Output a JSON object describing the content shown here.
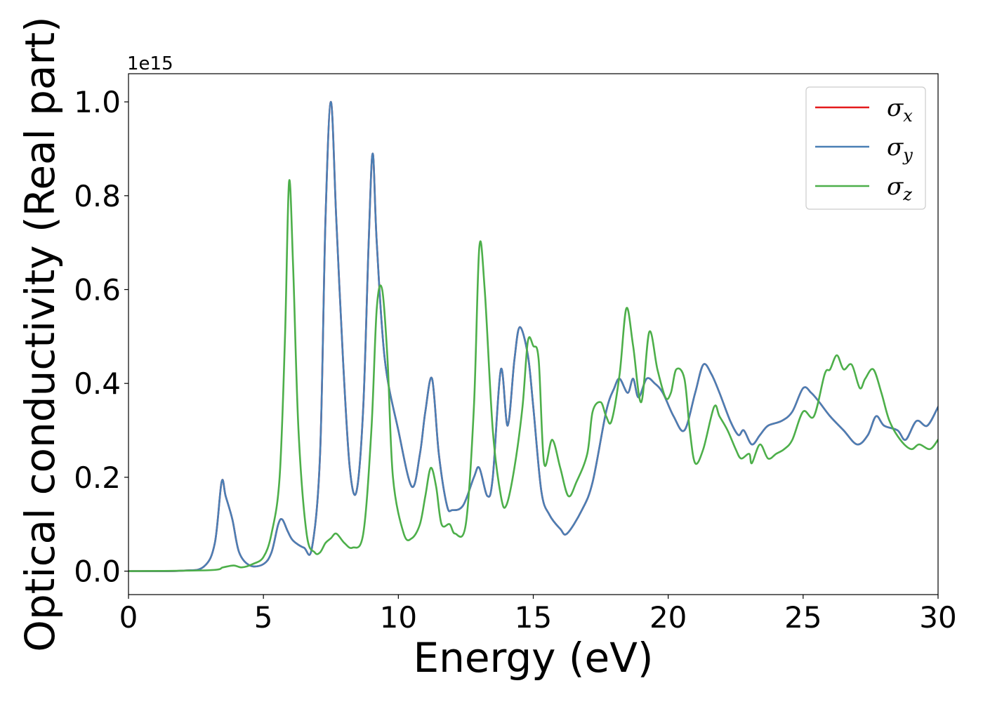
{
  "chart_data": {
    "type": "line",
    "xlabel": "Energy (eV)",
    "ylabel": "Optical conductivity (Real part)",
    "y_offset_label": "1e15",
    "xlim": [
      0,
      30
    ],
    "ylim": [
      -0.05,
      1.06
    ],
    "xticks": [
      0,
      5,
      10,
      15,
      20,
      25,
      30
    ],
    "xtick_labels": [
      "0",
      "5",
      "10",
      "15",
      "20",
      "25",
      "30"
    ],
    "yticks": [
      0.0,
      0.2,
      0.4,
      0.6,
      0.8,
      1.0
    ],
    "ytick_labels": [
      "0.0",
      "0.2",
      "0.4",
      "0.6",
      "0.8",
      "1.0"
    ],
    "grid": false,
    "legend_position": "top-right",
    "series": [
      {
        "name": "σx",
        "symbol": "σ",
        "subscript": "x",
        "color": "#e41a1c",
        "points": [
          [
            0,
            0
          ],
          [
            2,
            0.001
          ],
          [
            2.8,
            0.01
          ],
          [
            3.2,
            0.06
          ],
          [
            3.45,
            0.19
          ],
          [
            3.6,
            0.16
          ],
          [
            3.85,
            0.11
          ],
          [
            4.1,
            0.04
          ],
          [
            4.5,
            0.012
          ],
          [
            5,
            0.015
          ],
          [
            5.3,
            0.04
          ],
          [
            5.55,
            0.1
          ],
          [
            5.7,
            0.11
          ],
          [
            5.9,
            0.085
          ],
          [
            6.1,
            0.065
          ],
          [
            6.5,
            0.05
          ],
          [
            6.8,
            0.05
          ],
          [
            7.1,
            0.25
          ],
          [
            7.3,
            0.75
          ],
          [
            7.5,
            1.0
          ],
          [
            7.7,
            0.75
          ],
          [
            7.95,
            0.45
          ],
          [
            8.2,
            0.22
          ],
          [
            8.45,
            0.17
          ],
          [
            8.7,
            0.35
          ],
          [
            8.9,
            0.7
          ],
          [
            9.05,
            0.89
          ],
          [
            9.2,
            0.7
          ],
          [
            9.5,
            0.45
          ],
          [
            10,
            0.3
          ],
          [
            10.5,
            0.18
          ],
          [
            10.8,
            0.25
          ],
          [
            11,
            0.34
          ],
          [
            11.25,
            0.41
          ],
          [
            11.5,
            0.25
          ],
          [
            11.8,
            0.14
          ],
          [
            12,
            0.13
          ],
          [
            12.4,
            0.14
          ],
          [
            12.8,
            0.2
          ],
          [
            13,
            0.22
          ],
          [
            13.3,
            0.16
          ],
          [
            13.5,
            0.2
          ],
          [
            13.8,
            0.43
          ],
          [
            14.05,
            0.31
          ],
          [
            14.3,
            0.45
          ],
          [
            14.5,
            0.52
          ],
          [
            14.8,
            0.46
          ],
          [
            15,
            0.35
          ],
          [
            15.3,
            0.17
          ],
          [
            15.6,
            0.12
          ],
          [
            16,
            0.09
          ],
          [
            16.25,
            0.08
          ],
          [
            16.8,
            0.13
          ],
          [
            17.2,
            0.19
          ],
          [
            17.7,
            0.34
          ],
          [
            18,
            0.39
          ],
          [
            18.2,
            0.41
          ],
          [
            18.5,
            0.38
          ],
          [
            18.7,
            0.41
          ],
          [
            18.9,
            0.37
          ],
          [
            19.2,
            0.41
          ],
          [
            19.5,
            0.4
          ],
          [
            19.8,
            0.38
          ],
          [
            20.2,
            0.33
          ],
          [
            20.6,
            0.3
          ],
          [
            21,
            0.38
          ],
          [
            21.3,
            0.44
          ],
          [
            21.6,
            0.42
          ],
          [
            21.9,
            0.38
          ],
          [
            22.3,
            0.32
          ],
          [
            22.6,
            0.29
          ],
          [
            22.8,
            0.3
          ],
          [
            23.1,
            0.27
          ],
          [
            23.4,
            0.29
          ],
          [
            23.7,
            0.31
          ],
          [
            24.2,
            0.32
          ],
          [
            24.6,
            0.34
          ],
          [
            25,
            0.39
          ],
          [
            25.3,
            0.38
          ],
          [
            25.6,
            0.36
          ],
          [
            26,
            0.33
          ],
          [
            26.5,
            0.3
          ],
          [
            27,
            0.27
          ],
          [
            27.4,
            0.29
          ],
          [
            27.7,
            0.33
          ],
          [
            28,
            0.31
          ],
          [
            28.5,
            0.3
          ],
          [
            28.8,
            0.28
          ],
          [
            29.2,
            0.32
          ],
          [
            29.6,
            0.31
          ],
          [
            30,
            0.35
          ]
        ]
      },
      {
        "name": "σy",
        "symbol": "σ",
        "subscript": "y",
        "color": "#4a7fb5",
        "points": [
          [
            0,
            0
          ],
          [
            2,
            0.001
          ],
          [
            2.8,
            0.01
          ],
          [
            3.2,
            0.06
          ],
          [
            3.45,
            0.19
          ],
          [
            3.6,
            0.16
          ],
          [
            3.85,
            0.11
          ],
          [
            4.1,
            0.04
          ],
          [
            4.5,
            0.012
          ],
          [
            5,
            0.015
          ],
          [
            5.3,
            0.04
          ],
          [
            5.55,
            0.1
          ],
          [
            5.7,
            0.11
          ],
          [
            5.9,
            0.085
          ],
          [
            6.1,
            0.065
          ],
          [
            6.5,
            0.05
          ],
          [
            6.8,
            0.05
          ],
          [
            7.1,
            0.25
          ],
          [
            7.3,
            0.75
          ],
          [
            7.5,
            1.0
          ],
          [
            7.7,
            0.75
          ],
          [
            7.95,
            0.45
          ],
          [
            8.2,
            0.22
          ],
          [
            8.45,
            0.17
          ],
          [
            8.7,
            0.35
          ],
          [
            8.9,
            0.7
          ],
          [
            9.05,
            0.89
          ],
          [
            9.2,
            0.7
          ],
          [
            9.5,
            0.45
          ],
          [
            10,
            0.3
          ],
          [
            10.5,
            0.18
          ],
          [
            10.8,
            0.25
          ],
          [
            11,
            0.34
          ],
          [
            11.25,
            0.41
          ],
          [
            11.5,
            0.25
          ],
          [
            11.8,
            0.14
          ],
          [
            12,
            0.13
          ],
          [
            12.4,
            0.14
          ],
          [
            12.8,
            0.2
          ],
          [
            13,
            0.22
          ],
          [
            13.3,
            0.16
          ],
          [
            13.5,
            0.2
          ],
          [
            13.8,
            0.43
          ],
          [
            14.05,
            0.31
          ],
          [
            14.3,
            0.45
          ],
          [
            14.5,
            0.52
          ],
          [
            14.8,
            0.46
          ],
          [
            15,
            0.35
          ],
          [
            15.3,
            0.17
          ],
          [
            15.6,
            0.12
          ],
          [
            16,
            0.09
          ],
          [
            16.25,
            0.08
          ],
          [
            16.8,
            0.13
          ],
          [
            17.2,
            0.19
          ],
          [
            17.7,
            0.34
          ],
          [
            18,
            0.39
          ],
          [
            18.2,
            0.41
          ],
          [
            18.5,
            0.38
          ],
          [
            18.7,
            0.41
          ],
          [
            18.9,
            0.37
          ],
          [
            19.2,
            0.41
          ],
          [
            19.5,
            0.4
          ],
          [
            19.8,
            0.38
          ],
          [
            20.2,
            0.33
          ],
          [
            20.6,
            0.3
          ],
          [
            21,
            0.38
          ],
          [
            21.3,
            0.44
          ],
          [
            21.6,
            0.42
          ],
          [
            21.9,
            0.38
          ],
          [
            22.3,
            0.32
          ],
          [
            22.6,
            0.29
          ],
          [
            22.8,
            0.3
          ],
          [
            23.1,
            0.27
          ],
          [
            23.4,
            0.29
          ],
          [
            23.7,
            0.31
          ],
          [
            24.2,
            0.32
          ],
          [
            24.6,
            0.34
          ],
          [
            25,
            0.39
          ],
          [
            25.3,
            0.38
          ],
          [
            25.6,
            0.36
          ],
          [
            26,
            0.33
          ],
          [
            26.5,
            0.3
          ],
          [
            27,
            0.27
          ],
          [
            27.4,
            0.29
          ],
          [
            27.7,
            0.33
          ],
          [
            28,
            0.31
          ],
          [
            28.5,
            0.3
          ],
          [
            28.8,
            0.28
          ],
          [
            29.2,
            0.32
          ],
          [
            29.6,
            0.31
          ],
          [
            30,
            0.35
          ]
        ]
      },
      {
        "name": "σz",
        "symbol": "σ",
        "subscript": "z",
        "color": "#4daf4a",
        "points": [
          [
            0,
            0
          ],
          [
            3,
            0.002
          ],
          [
            3.5,
            0.008
          ],
          [
            3.9,
            0.012
          ],
          [
            4.2,
            0.008
          ],
          [
            4.6,
            0.015
          ],
          [
            5,
            0.03
          ],
          [
            5.3,
            0.08
          ],
          [
            5.6,
            0.2
          ],
          [
            5.8,
            0.5
          ],
          [
            5.95,
            0.83
          ],
          [
            6.1,
            0.65
          ],
          [
            6.3,
            0.3
          ],
          [
            6.6,
            0.08
          ],
          [
            6.9,
            0.04
          ],
          [
            7.1,
            0.04
          ],
          [
            7.3,
            0.06
          ],
          [
            7.5,
            0.07
          ],
          [
            7.7,
            0.08
          ],
          [
            8,
            0.06
          ],
          [
            8.3,
            0.05
          ],
          [
            8.7,
            0.08
          ],
          [
            9,
            0.3
          ],
          [
            9.2,
            0.56
          ],
          [
            9.4,
            0.6
          ],
          [
            9.6,
            0.45
          ],
          [
            9.8,
            0.2
          ],
          [
            10.2,
            0.08
          ],
          [
            10.5,
            0.07
          ],
          [
            10.8,
            0.1
          ],
          [
            11,
            0.16
          ],
          [
            11.2,
            0.22
          ],
          [
            11.4,
            0.18
          ],
          [
            11.6,
            0.1
          ],
          [
            11.9,
            0.1
          ],
          [
            12.1,
            0.08
          ],
          [
            12.5,
            0.1
          ],
          [
            12.8,
            0.35
          ],
          [
            13,
            0.69
          ],
          [
            13.2,
            0.6
          ],
          [
            13.5,
            0.3
          ],
          [
            13.8,
            0.16
          ],
          [
            14,
            0.14
          ],
          [
            14.3,
            0.22
          ],
          [
            14.6,
            0.35
          ],
          [
            14.8,
            0.49
          ],
          [
            15,
            0.48
          ],
          [
            15.2,
            0.45
          ],
          [
            15.4,
            0.23
          ],
          [
            15.7,
            0.28
          ],
          [
            16,
            0.22
          ],
          [
            16.3,
            0.16
          ],
          [
            16.6,
            0.19
          ],
          [
            17,
            0.25
          ],
          [
            17.2,
            0.34
          ],
          [
            17.5,
            0.36
          ],
          [
            17.7,
            0.33
          ],
          [
            17.9,
            0.32
          ],
          [
            18.2,
            0.42
          ],
          [
            18.45,
            0.56
          ],
          [
            18.7,
            0.48
          ],
          [
            19,
            0.36
          ],
          [
            19.3,
            0.51
          ],
          [
            19.6,
            0.43
          ],
          [
            19.9,
            0.37
          ],
          [
            20.1,
            0.38
          ],
          [
            20.3,
            0.43
          ],
          [
            20.6,
            0.41
          ],
          [
            20.8,
            0.3
          ],
          [
            21,
            0.23
          ],
          [
            21.3,
            0.26
          ],
          [
            21.7,
            0.35
          ],
          [
            21.9,
            0.33
          ],
          [
            22.2,
            0.3
          ],
          [
            22.5,
            0.26
          ],
          [
            22.7,
            0.24
          ],
          [
            23,
            0.25
          ],
          [
            23.1,
            0.23
          ],
          [
            23.4,
            0.27
          ],
          [
            23.7,
            0.24
          ],
          [
            24,
            0.25
          ],
          [
            24.3,
            0.26
          ],
          [
            24.6,
            0.28
          ],
          [
            25,
            0.34
          ],
          [
            25.4,
            0.33
          ],
          [
            25.8,
            0.42
          ],
          [
            26,
            0.43
          ],
          [
            26.25,
            0.46
          ],
          [
            26.5,
            0.43
          ],
          [
            26.8,
            0.44
          ],
          [
            27.1,
            0.39
          ],
          [
            27.3,
            0.41
          ],
          [
            27.6,
            0.43
          ],
          [
            27.9,
            0.38
          ],
          [
            28.2,
            0.32
          ],
          [
            28.6,
            0.28
          ],
          [
            29,
            0.26
          ],
          [
            29.3,
            0.27
          ],
          [
            29.7,
            0.26
          ],
          [
            30,
            0.28
          ]
        ]
      }
    ]
  }
}
